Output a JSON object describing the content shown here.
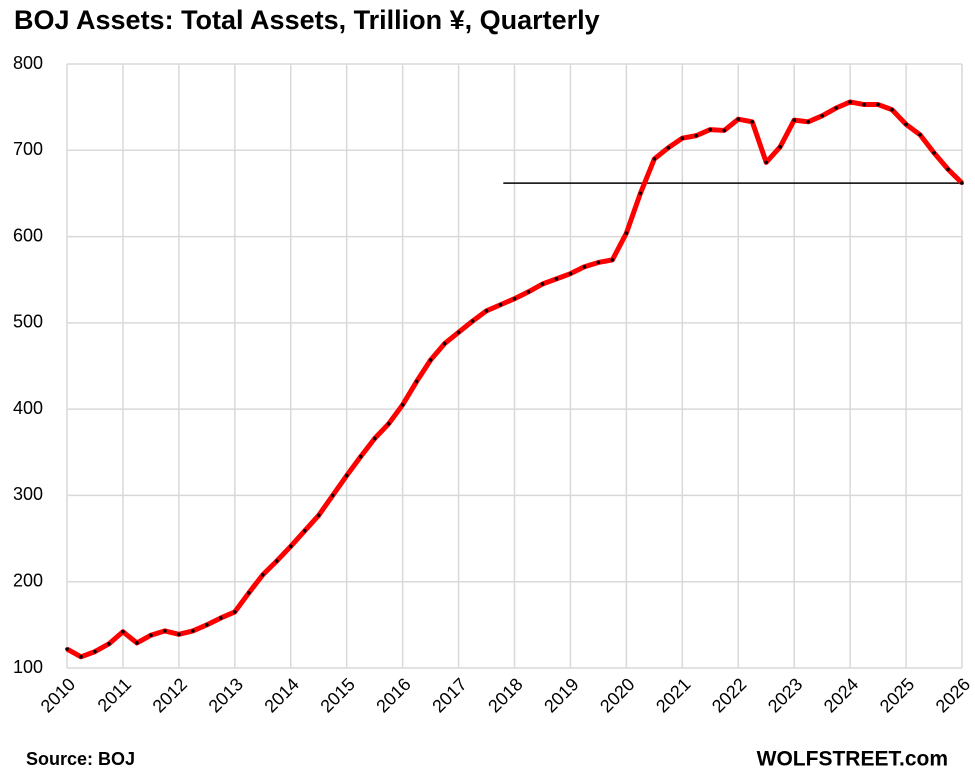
{
  "chart_data": {
    "type": "line",
    "title": "BOJ Assets: Total Assets, Trillion ¥, Quarterly",
    "source": "Source: BOJ",
    "credit": "WOLFSTREET.com",
    "x": [
      2010,
      2010.25,
      2010.5,
      2010.75,
      2011,
      2011.25,
      2011.5,
      2011.75,
      2012,
      2012.25,
      2012.5,
      2012.75,
      2013,
      2013.25,
      2013.5,
      2013.75,
      2014,
      2014.25,
      2014.5,
      2014.75,
      2015,
      2015.25,
      2015.5,
      2015.75,
      2016,
      2016.25,
      2016.5,
      2016.75,
      2017,
      2017.25,
      2017.5,
      2017.75,
      2018,
      2018.25,
      2018.5,
      2018.75,
      2019,
      2019.25,
      2019.5,
      2019.75,
      2020,
      2020.25,
      2020.5,
      2020.75,
      2021,
      2021.25,
      2021.5,
      2021.75,
      2022,
      2022.25,
      2022.5,
      2022.75,
      2023,
      2023.25,
      2023.5,
      2023.75,
      2024,
      2024.25,
      2024.5,
      2024.75,
      2025,
      2025.25,
      2025.5,
      2025.75,
      2026
    ],
    "series": [
      {
        "name": "Total Assets",
        "color": "#ff0000",
        "marker_color": "#000000",
        "values": [
          122,
          113,
          119,
          128,
          142,
          129,
          138,
          143,
          139,
          143,
          150,
          158,
          165,
          187,
          208,
          224,
          241,
          259,
          277,
          300,
          323,
          345,
          366,
          383,
          405,
          432,
          457,
          476,
          489,
          502,
          514,
          521,
          528,
          536,
          545,
          551,
          557,
          565,
          570,
          573,
          604,
          650,
          690,
          703,
          714,
          717,
          724,
          723,
          736,
          733,
          686,
          704,
          735,
          733,
          740,
          749,
          756,
          753,
          753,
          747,
          730,
          718,
          697,
          678,
          662
        ]
      }
    ],
    "reference_line": {
      "value": 662,
      "x_start": 2017.8,
      "color": "#000000"
    },
    "xlim": [
      2010,
      2026
    ],
    "xticks": [
      2010,
      2011,
      2012,
      2013,
      2014,
      2015,
      2016,
      2017,
      2018,
      2019,
      2020,
      2021,
      2022,
      2023,
      2024,
      2025,
      2026
    ],
    "ylim": [
      100,
      800
    ],
    "yticks": [
      100,
      200,
      300,
      400,
      500,
      600,
      700,
      800
    ],
    "grid": true
  }
}
